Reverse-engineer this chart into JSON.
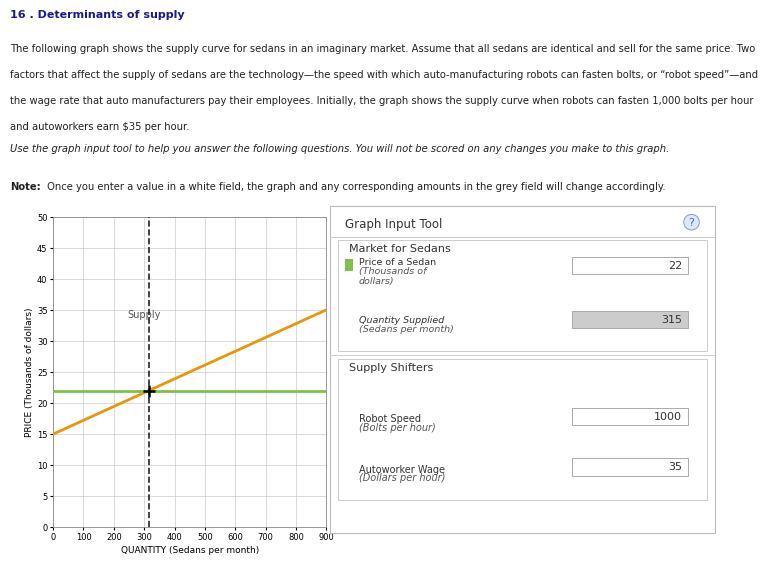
{
  "title": "16 . Determinants of supply",
  "para1_line1": "The following graph shows the supply curve for sedans in an imaginary market. Assume that all sedans are identical and sell for the same price. Two",
  "para1_line2": "factors that affect the supply of sedans are the technology—the speed with which auto-manufacturing robots can fasten bolts, or “robot speed”—and",
  "para1_line3": "the wage rate that auto manufacturers pay their employees. Initially, the graph shows the supply curve when robots can fasten 1,000 bolts per hour",
  "para1_line4": "and autoworkers earn $35 per hour.",
  "italic_text": "Use the graph input tool to help you answer the following questions. You will not be scored on any changes you make to this graph.",
  "note_bold": "Note:",
  "note_rest": " Once you enter a value in a white field, the graph and any corresponding amounts in the grey field will change accordingly.",
  "graph_input_tool_label": "Graph Input Tool",
  "market_label": "Market for Sedans",
  "price_label_line1": "Price of a Sedan",
  "price_label_line2": "(Thousands of",
  "price_label_line3": "dollars)",
  "price_value": "22",
  "qty_label_line1": "Quantity Supplied",
  "qty_label_line2": "(Sedans per month)",
  "qty_value": "315",
  "supply_shifters_label": "Supply Shifters",
  "robot_label_line1": "Robot Speed",
  "robot_label_line2": "(Bolts per hour)",
  "robot_value": "1000",
  "wage_label_line1": "Autoworker Wage",
  "wage_label_line2": "(Dollars per hour)",
  "wage_value": "35",
  "supply_line_x": [
    0,
    900
  ],
  "supply_line_y": [
    15,
    35
  ],
  "price_line_y": 22,
  "qty_line_x": 315,
  "supply_color": "#E8960A",
  "price_line_color": "#7DC24B",
  "qty_line_color": "#222222",
  "xlabel": "QUANTITY (Sedans per month)",
  "ylabel": "PRICE (Thousands of dollars)",
  "ylim": [
    0,
    50
  ],
  "xlim": [
    0,
    900
  ],
  "yticks": [
    0,
    5,
    10,
    15,
    20,
    25,
    30,
    35,
    40,
    45,
    50
  ],
  "xticks": [
    0,
    100,
    200,
    300,
    400,
    500,
    600,
    700,
    800,
    900
  ],
  "supply_label": "Supply",
  "bg_color": "#FFFFFF",
  "grid_color": "#CCCCCC",
  "panel_border": "#BBBBBB",
  "title_color": "#1a1a8c"
}
